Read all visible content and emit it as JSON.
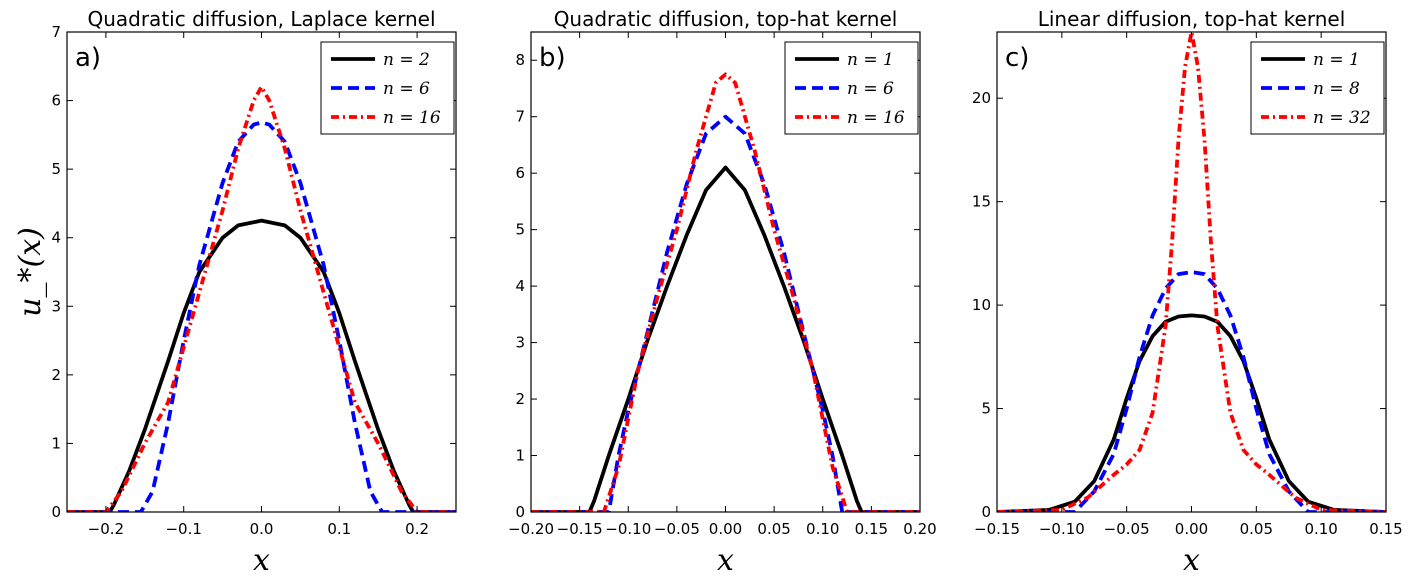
{
  "figure": {
    "ylabel": "u_*(x)"
  },
  "chart_data": [
    {
      "type": "line",
      "panel_label": "a)",
      "title": "Quadratic diffusion, Laplace kernel",
      "xlabel": "x",
      "ylabel": "u_*(x)",
      "xlim": [
        -0.25,
        0.25
      ],
      "ylim": [
        0,
        7
      ],
      "xticks": [
        -0.2,
        -0.1,
        0.0,
        0.1,
        0.2
      ],
      "xtick_labels": [
        "−0.2",
        "−0.1",
        "0.0",
        "0.1",
        "0.2"
      ],
      "yticks": [
        0,
        1,
        2,
        3,
        4,
        5,
        6,
        7
      ],
      "ytick_labels": [
        "0",
        "1",
        "2",
        "3",
        "4",
        "5",
        "6",
        "7"
      ],
      "legend_position": "top-right",
      "series": [
        {
          "name": "n = 2",
          "color": "#000000",
          "style": "solid",
          "x": [
            -0.25,
            -0.195,
            -0.19,
            -0.17,
            -0.15,
            -0.12,
            -0.1,
            -0.08,
            -0.05,
            -0.03,
            0.0,
            0.03,
            0.05,
            0.08,
            0.1,
            0.12,
            0.15,
            0.17,
            0.19,
            0.195,
            0.25
          ],
          "y": [
            0,
            0,
            0.1,
            0.6,
            1.2,
            2.2,
            2.9,
            3.5,
            4.0,
            4.18,
            4.25,
            4.18,
            4.0,
            3.5,
            2.9,
            2.2,
            1.2,
            0.6,
            0.1,
            0,
            0
          ]
        },
        {
          "name": "n = 6",
          "color": "#0000ff",
          "style": "dashed",
          "x": [
            -0.25,
            -0.155,
            -0.14,
            -0.12,
            -0.1,
            -0.08,
            -0.05,
            -0.03,
            -0.01,
            0.0,
            0.01,
            0.03,
            0.05,
            0.08,
            0.1,
            0.12,
            0.14,
            0.155,
            0.25
          ],
          "y": [
            0,
            0,
            0.3,
            1.3,
            2.5,
            3.6,
            4.8,
            5.4,
            5.65,
            5.68,
            5.65,
            5.4,
            4.8,
            3.6,
            2.5,
            1.3,
            0.3,
            0,
            0
          ]
        },
        {
          "name": "n = 16",
          "color": "#ff0000",
          "style": "dashdot",
          "x": [
            -0.25,
            -0.2,
            -0.18,
            -0.15,
            -0.12,
            -0.1,
            -0.08,
            -0.05,
            -0.03,
            -0.01,
            0.0,
            0.01,
            0.03,
            0.05,
            0.08,
            0.1,
            0.12,
            0.15,
            0.18,
            0.2,
            0.25
          ],
          "y": [
            0,
            0,
            0.3,
            1.0,
            1.6,
            2.4,
            3.2,
            4.4,
            5.3,
            6.0,
            6.2,
            6.0,
            5.3,
            4.4,
            3.2,
            2.4,
            1.6,
            1.0,
            0.3,
            0,
            0
          ]
        }
      ]
    },
    {
      "type": "line",
      "panel_label": "b)",
      "title": "Quadratic diffusion, top-hat kernel",
      "xlabel": "x",
      "ylabel": "",
      "xlim": [
        -0.2,
        0.2
      ],
      "ylim": [
        0,
        8.5
      ],
      "xticks": [
        -0.2,
        -0.15,
        -0.1,
        -0.05,
        0.0,
        0.05,
        0.1,
        0.15,
        0.2
      ],
      "xtick_labels": [
        "−0.20",
        "−0.15",
        "−0.10",
        "−0.05",
        "0.00",
        "0.05",
        "0.10",
        "0.15",
        "0.20"
      ],
      "yticks": [
        0,
        1,
        2,
        3,
        4,
        5,
        6,
        7,
        8
      ],
      "ytick_labels": [
        "0",
        "1",
        "2",
        "3",
        "4",
        "5",
        "6",
        "7",
        "8"
      ],
      "legend_position": "top-right",
      "series": [
        {
          "name": "n = 1",
          "color": "#000000",
          "style": "solid",
          "x": [
            -0.2,
            -0.14,
            -0.135,
            -0.12,
            -0.1,
            -0.08,
            -0.06,
            -0.04,
            -0.02,
            0.0,
            0.02,
            0.04,
            0.06,
            0.08,
            0.1,
            0.12,
            0.135,
            0.14,
            0.2
          ],
          "y": [
            0,
            0,
            0.2,
            1.0,
            2.0,
            3.05,
            4.0,
            4.9,
            5.7,
            6.1,
            5.7,
            4.9,
            4.0,
            3.05,
            2.0,
            1.0,
            0.2,
            0,
            0
          ]
        },
        {
          "name": "n = 6",
          "color": "#0000ff",
          "style": "dashed",
          "x": [
            -0.2,
            -0.12,
            -0.11,
            -0.1,
            -0.08,
            -0.06,
            -0.04,
            -0.02,
            0.0,
            0.02,
            0.04,
            0.06,
            0.08,
            0.1,
            0.11,
            0.12,
            0.2
          ],
          "y": [
            0,
            0,
            1.0,
            1.8,
            3.2,
            4.6,
            5.8,
            6.7,
            7.0,
            6.7,
            5.8,
            4.6,
            3.2,
            1.8,
            1.0,
            0,
            0
          ]
        },
        {
          "name": "n = 16",
          "color": "#ff0000",
          "style": "dashdot",
          "x": [
            -0.2,
            -0.125,
            -0.11,
            -0.09,
            -0.07,
            -0.05,
            -0.03,
            -0.01,
            0.0,
            0.01,
            0.03,
            0.05,
            0.07,
            0.09,
            0.11,
            0.125,
            0.2
          ],
          "y": [
            0,
            0,
            0.8,
            2.5,
            3.8,
            5.0,
            6.4,
            7.6,
            7.75,
            7.6,
            6.4,
            5.0,
            3.8,
            2.5,
            0.8,
            0,
            0
          ]
        }
      ]
    },
    {
      "type": "line",
      "panel_label": "c)",
      "title": "Linear diffusion, top-hat kernel",
      "xlabel": "x",
      "ylabel": "",
      "xlim": [
        -0.15,
        0.15
      ],
      "ylim": [
        0,
        23.2
      ],
      "xticks": [
        -0.15,
        -0.1,
        -0.05,
        0.0,
        0.05,
        0.1,
        0.15
      ],
      "xtick_labels": [
        "−0.15",
        "−0.10",
        "−0.05",
        "0.00",
        "0.05",
        "0.10",
        "0.15"
      ],
      "yticks": [
        0,
        5,
        10,
        15,
        20
      ],
      "ytick_labels": [
        "0",
        "5",
        "10",
        "15",
        "20"
      ],
      "legend_position": "top-right",
      "series": [
        {
          "name": "n = 1",
          "color": "#000000",
          "style": "solid",
          "x": [
            -0.15,
            -0.11,
            -0.09,
            -0.075,
            -0.06,
            -0.05,
            -0.04,
            -0.03,
            -0.02,
            -0.01,
            0.0,
            0.01,
            0.02,
            0.03,
            0.04,
            0.05,
            0.06,
            0.075,
            0.09,
            0.11,
            0.15
          ],
          "y": [
            0,
            0.1,
            0.5,
            1.5,
            3.5,
            5.5,
            7.3,
            8.5,
            9.2,
            9.45,
            9.5,
            9.45,
            9.2,
            8.5,
            7.3,
            5.5,
            3.5,
            1.5,
            0.5,
            0.1,
            0
          ]
        },
        {
          "name": "n = 8",
          "color": "#0000ff",
          "style": "dashed",
          "x": [
            -0.15,
            -0.09,
            -0.075,
            -0.06,
            -0.05,
            -0.04,
            -0.03,
            -0.02,
            -0.01,
            0.0,
            0.01,
            0.02,
            0.03,
            0.04,
            0.05,
            0.06,
            0.075,
            0.09,
            0.15
          ],
          "y": [
            0,
            0,
            1.0,
            2.8,
            5.0,
            7.5,
            9.5,
            10.8,
            11.5,
            11.6,
            11.5,
            10.8,
            9.5,
            7.5,
            5.0,
            2.8,
            1.0,
            0,
            0
          ]
        },
        {
          "name": "n = 32",
          "color": "#ff0000",
          "style": "dashdot",
          "x": [
            -0.15,
            -0.1,
            -0.08,
            -0.06,
            -0.05,
            -0.04,
            -0.03,
            -0.02,
            -0.015,
            -0.01,
            -0.005,
            0.0,
            0.005,
            0.01,
            0.015,
            0.02,
            0.03,
            0.04,
            0.05,
            0.06,
            0.08,
            0.1,
            0.15
          ],
          "y": [
            0,
            0.1,
            0.7,
            1.8,
            2.3,
            3.0,
            4.8,
            9.0,
            13.0,
            18.0,
            21.5,
            23.2,
            21.5,
            18.0,
            13.0,
            9.0,
            4.8,
            3.0,
            2.3,
            1.8,
            0.7,
            0.1,
            0
          ]
        }
      ]
    }
  ]
}
